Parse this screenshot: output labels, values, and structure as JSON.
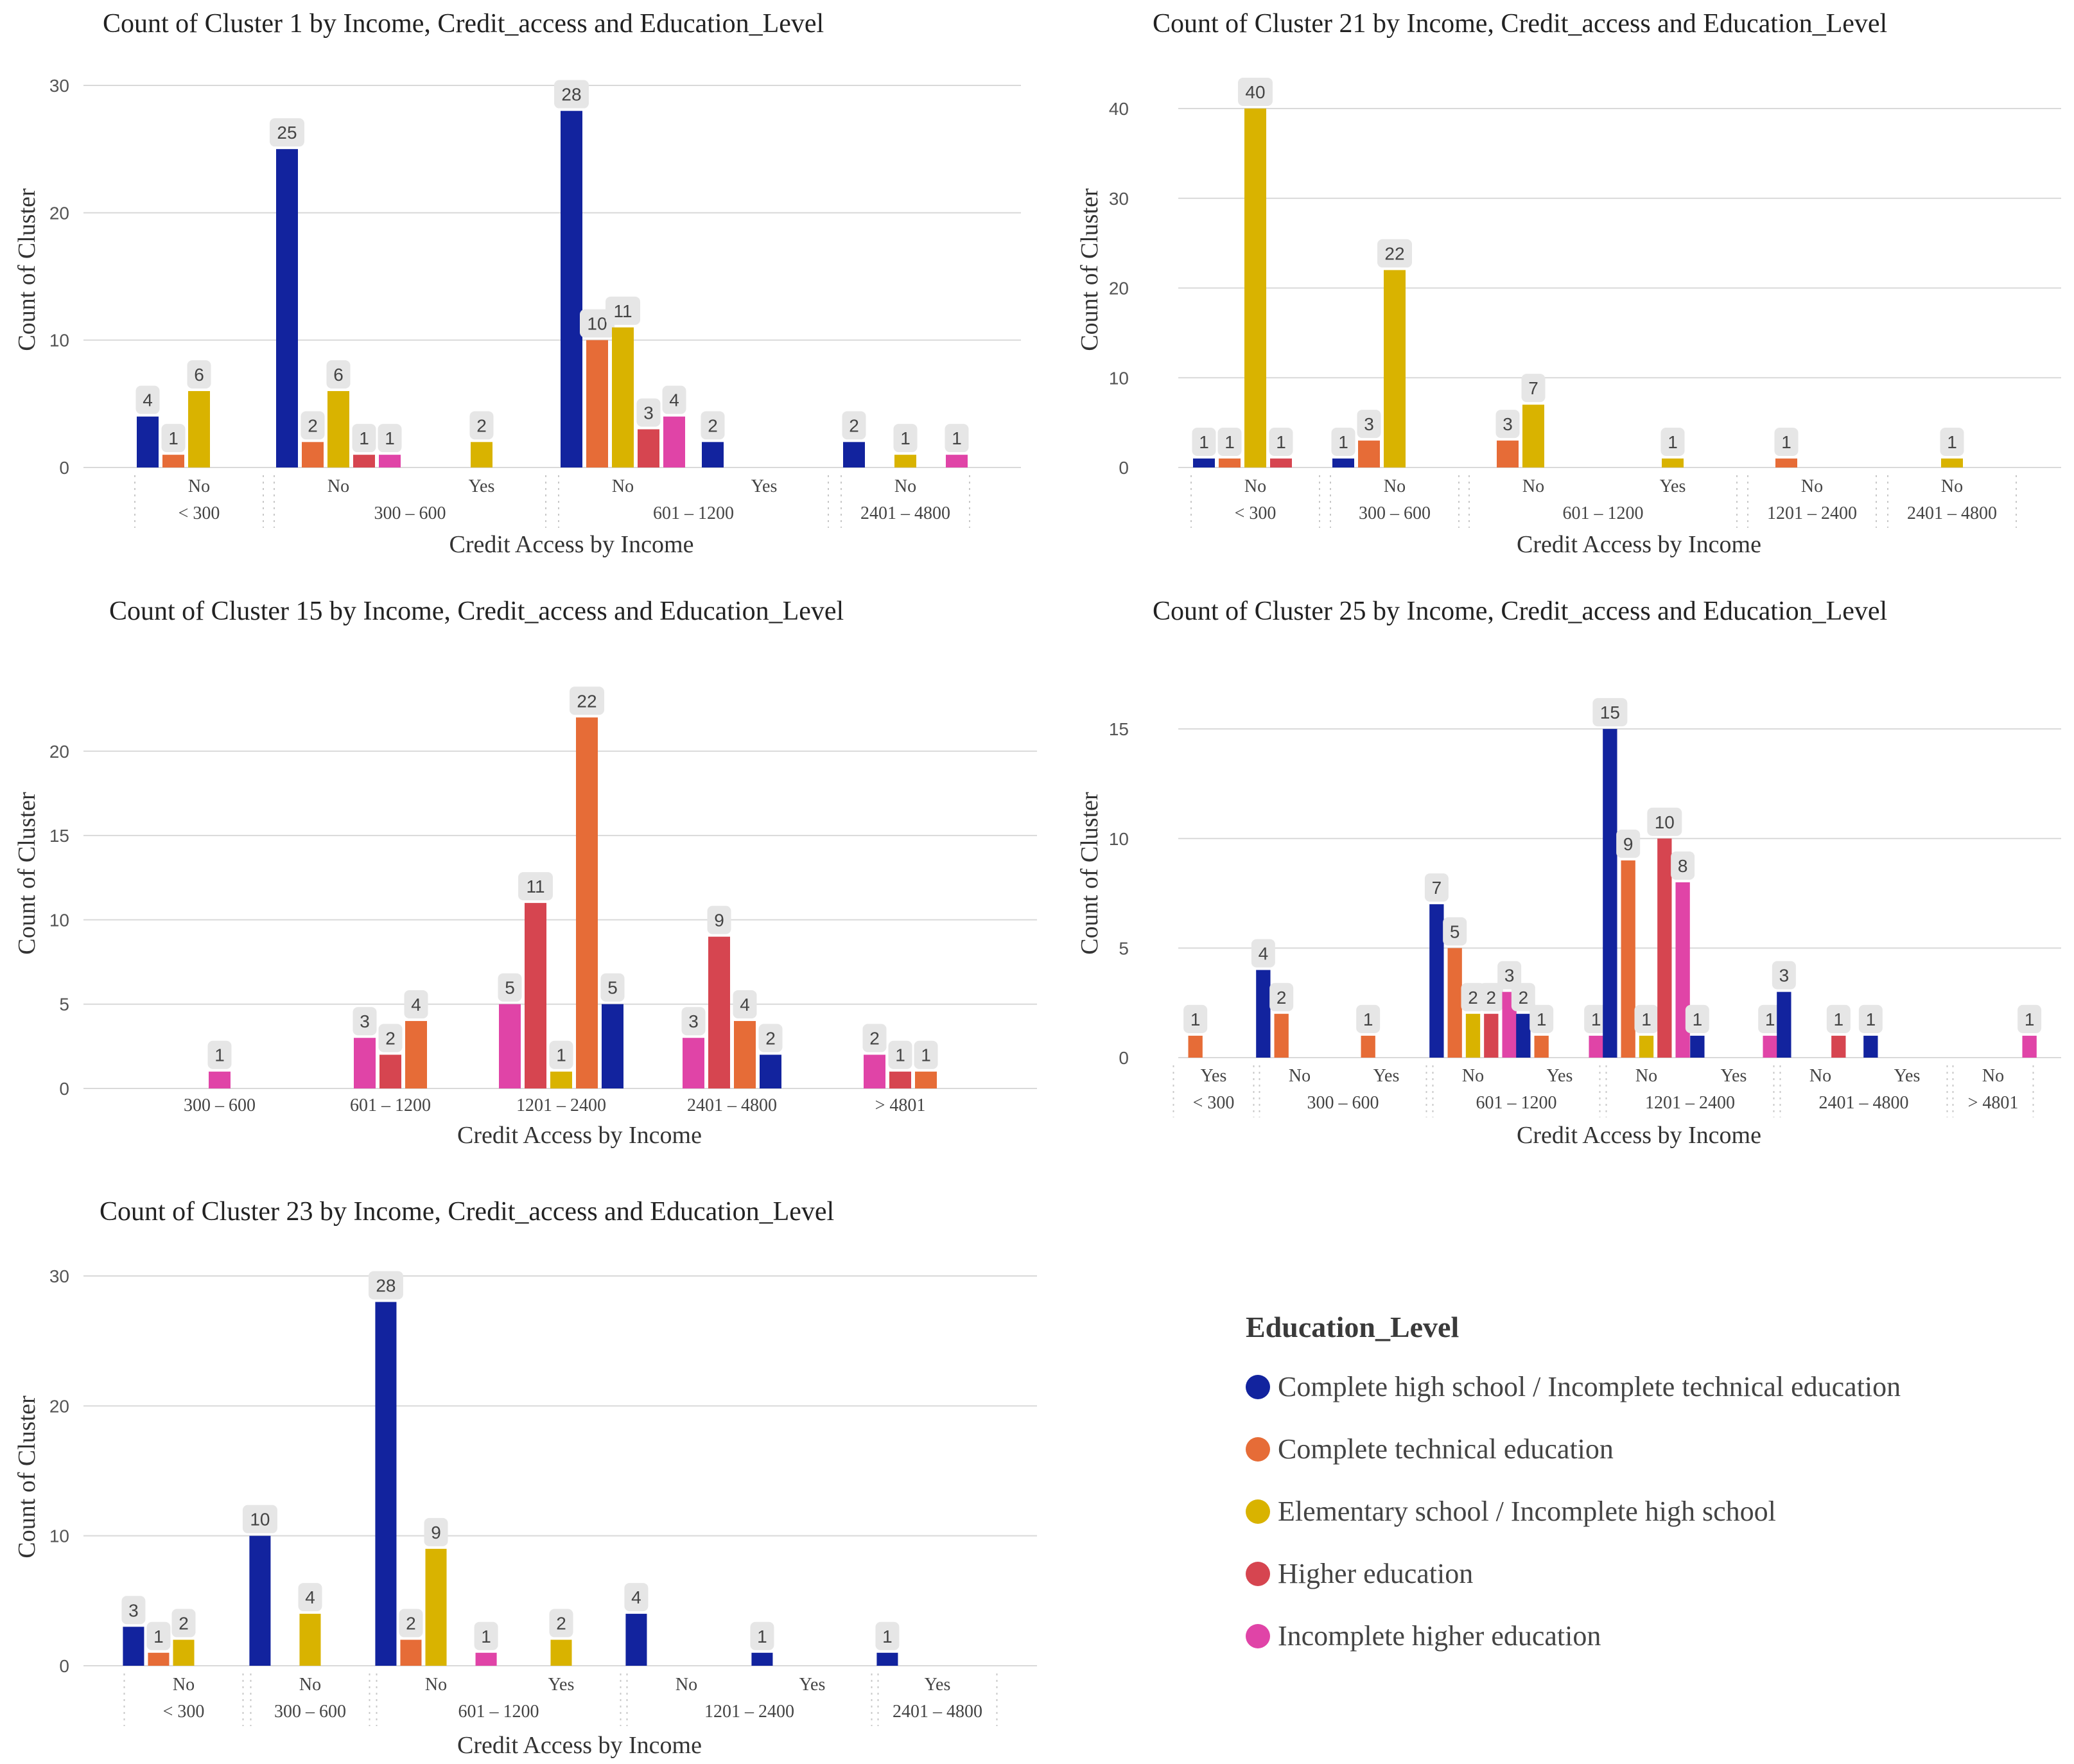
{
  "chart_data": [
    {
      "type": "bar",
      "title": "Count of Cluster 1 by Income, Credit_access and Education_Level",
      "xlabel": "Credit Access by Income",
      "ylabel": "Count of Cluster",
      "ylim": [
        0,
        30
      ],
      "yticks": [
        0,
        10,
        20,
        30
      ],
      "groups": [
        {
          "income": "< 300",
          "slots": [
            "No"
          ]
        },
        {
          "income": "300 – 600",
          "slots": [
            "No",
            "Yes"
          ]
        },
        {
          "income": "601 – 1200",
          "slots": [
            "No",
            "Yes"
          ]
        },
        {
          "income": "2401 – 4800",
          "slots": [
            "No"
          ]
        }
      ],
      "bars": [
        {
          "slot": 0,
          "series": 0,
          "value": 4
        },
        {
          "slot": 0,
          "series": 1,
          "value": 1
        },
        {
          "slot": 0,
          "series": 2,
          "value": 6
        },
        {
          "slot": 1,
          "series": 0,
          "value": 25
        },
        {
          "slot": 1,
          "series": 1,
          "value": 2
        },
        {
          "slot": 1,
          "series": 2,
          "value": 6
        },
        {
          "slot": 1,
          "series": 3,
          "value": 1
        },
        {
          "slot": 1,
          "series": 4,
          "value": 1
        },
        {
          "slot": 2,
          "series": 2,
          "value": 2
        },
        {
          "slot": 3,
          "series": 0,
          "value": 28
        },
        {
          "slot": 3,
          "series": 1,
          "value": 10
        },
        {
          "slot": 3,
          "series": 2,
          "value": 11
        },
        {
          "slot": 3,
          "series": 3,
          "value": 3
        },
        {
          "slot": 3,
          "series": 4,
          "value": 4
        },
        {
          "slot": 4,
          "series": 0,
          "value": 2
        },
        {
          "slot": 5,
          "series": 0,
          "value": 2
        },
        {
          "slot": 5,
          "series": 2,
          "value": 1
        },
        {
          "slot": 5,
          "series": 4,
          "value": 1
        }
      ]
    },
    {
      "type": "bar",
      "title": "Count of Cluster 21 by Income, Credit_access and Education_Level",
      "xlabel": "Credit Access by Income",
      "ylabel": "Count of Cluster",
      "ylim": [
        0,
        40
      ],
      "yticks": [
        0,
        10,
        20,
        30,
        40
      ],
      "groups": [
        {
          "income": "< 300",
          "slots": [
            "No"
          ]
        },
        {
          "income": "300 – 600",
          "slots": [
            "No"
          ]
        },
        {
          "income": "601 – 1200",
          "slots": [
            "No",
            "Yes"
          ]
        },
        {
          "income": "1201 – 2400",
          "slots": [
            "No"
          ]
        },
        {
          "income": "2401 – 4800",
          "slots": [
            "No"
          ]
        }
      ],
      "bars": [
        {
          "slot": 0,
          "series": 0,
          "value": 1
        },
        {
          "slot": 0,
          "series": 1,
          "value": 1
        },
        {
          "slot": 0,
          "series": 2,
          "value": 40
        },
        {
          "slot": 0,
          "series": 3,
          "value": 1
        },
        {
          "slot": 1,
          "series": 0,
          "value": 1
        },
        {
          "slot": 1,
          "series": 1,
          "value": 3
        },
        {
          "slot": 1,
          "series": 2,
          "value": 22
        },
        {
          "slot": 2,
          "series": 1,
          "value": 3
        },
        {
          "slot": 2,
          "series": 2,
          "value": 7
        },
        {
          "slot": 3,
          "series": 2,
          "value": 1
        },
        {
          "slot": 4,
          "series": 1,
          "value": 1
        },
        {
          "slot": 5,
          "series": 2,
          "value": 1
        }
      ]
    },
    {
      "type": "bar",
      "title": "Count of Cluster 15 by Income, Credit_access and Education_Level",
      "xlabel": "Credit Access by Income",
      "ylabel": "Count of Cluster",
      "ylim": [
        0,
        23
      ],
      "yticks": [
        0,
        5,
        10,
        15,
        20
      ],
      "groups": [
        {
          "income": "300 – 600",
          "slots": [
            ""
          ]
        },
        {
          "income": "601 – 1200",
          "slots": [
            ""
          ]
        },
        {
          "income": "1201 – 2400",
          "slots": [
            ""
          ]
        },
        {
          "income": "2401 – 4800",
          "slots": [
            ""
          ]
        },
        {
          "income": "> 4801",
          "slots": [
            ""
          ]
        }
      ],
      "bars": [
        {
          "slot": 0,
          "series": 4,
          "value": 1
        },
        {
          "slot": 1,
          "series": 4,
          "value": 3
        },
        {
          "slot": 1,
          "series": 3,
          "value": 2
        },
        {
          "slot": 1,
          "series": 1,
          "value": 4
        },
        {
          "slot": 2,
          "series": 4,
          "value": 5
        },
        {
          "slot": 2,
          "series": 3,
          "value": 11
        },
        {
          "slot": 2,
          "series": 2,
          "value": 1
        },
        {
          "slot": 2,
          "series": 1,
          "value": 22
        },
        {
          "slot": 2,
          "series": 0,
          "value": 5
        },
        {
          "slot": 3,
          "series": 4,
          "value": 3
        },
        {
          "slot": 3,
          "series": 3,
          "value": 9
        },
        {
          "slot": 3,
          "series": 1,
          "value": 4
        },
        {
          "slot": 3,
          "series": 0,
          "value": 2
        },
        {
          "slot": 4,
          "series": 4,
          "value": 2
        },
        {
          "slot": 4,
          "series": 3,
          "value": 1
        },
        {
          "slot": 4,
          "series": 1,
          "value": 1
        }
      ]
    },
    {
      "type": "bar",
      "title": "Count of Cluster 25 by Income, Credit_access and Education_Level",
      "xlabel": "Credit Access by Income",
      "ylabel": "Count of Cluster",
      "ylim": [
        0,
        16
      ],
      "yticks": [
        0,
        5,
        10,
        15
      ],
      "groups": [
        {
          "income": "< 300",
          "slots": [
            "Yes"
          ]
        },
        {
          "income": "300 – 600",
          "slots": [
            "No",
            "Yes"
          ]
        },
        {
          "income": "601 – 1200",
          "slots": [
            "No",
            "Yes"
          ]
        },
        {
          "income": "1201 – 2400",
          "slots": [
            "No",
            "Yes"
          ]
        },
        {
          "income": "2401 – 4800",
          "slots": [
            "No",
            "Yes"
          ]
        },
        {
          "income": "> 4801",
          "slots": [
            "No"
          ]
        }
      ],
      "bars": [
        {
          "slot": 0,
          "series": 1,
          "value": 1
        },
        {
          "slot": 1,
          "series": 0,
          "value": 4
        },
        {
          "slot": 1,
          "series": 1,
          "value": 2
        },
        {
          "slot": 2,
          "series": 1,
          "value": 1
        },
        {
          "slot": 3,
          "series": 0,
          "value": 7
        },
        {
          "slot": 3,
          "series": 1,
          "value": 5
        },
        {
          "slot": 3,
          "series": 2,
          "value": 2
        },
        {
          "slot": 3,
          "series": 3,
          "value": 2
        },
        {
          "slot": 3,
          "series": 4,
          "value": 3
        },
        {
          "slot": 4,
          "series": 0,
          "value": 2
        },
        {
          "slot": 4,
          "series": 1,
          "value": 1
        },
        {
          "slot": 4,
          "series": 4,
          "value": 1
        },
        {
          "slot": 5,
          "series": 0,
          "value": 15
        },
        {
          "slot": 5,
          "series": 1,
          "value": 9
        },
        {
          "slot": 5,
          "series": 2,
          "value": 1
        },
        {
          "slot": 5,
          "series": 3,
          "value": 10
        },
        {
          "slot": 5,
          "series": 4,
          "value": 8
        },
        {
          "slot": 6,
          "series": 0,
          "value": 1
        },
        {
          "slot": 6,
          "series": 4,
          "value": 1
        },
        {
          "slot": 7,
          "series": 0,
          "value": 3
        },
        {
          "slot": 7,
          "series": 3,
          "value": 1
        },
        {
          "slot": 8,
          "series": 0,
          "value": 1
        },
        {
          "slot": 9,
          "series": 4,
          "value": 1
        }
      ]
    },
    {
      "type": "bar",
      "title": "Count of Cluster 23 by Income, Credit_access and Education_Level",
      "xlabel": "Credit Access by Income",
      "ylabel": "Count of Cluster",
      "ylim": [
        0,
        30
      ],
      "yticks": [
        0,
        10,
        20,
        30
      ],
      "groups": [
        {
          "income": "< 300",
          "slots": [
            "No"
          ]
        },
        {
          "income": "300 – 600",
          "slots": [
            "No"
          ]
        },
        {
          "income": "601 – 1200",
          "slots": [
            "No",
            "Yes"
          ]
        },
        {
          "income": "1201 – 2400",
          "slots": [
            "No",
            "Yes"
          ]
        },
        {
          "income": "2401 – 4800",
          "slots": [
            "Yes"
          ]
        }
      ],
      "bars": [
        {
          "slot": 0,
          "series": 0,
          "value": 3
        },
        {
          "slot": 0,
          "series": 1,
          "value": 1
        },
        {
          "slot": 0,
          "series": 2,
          "value": 2
        },
        {
          "slot": 1,
          "series": 0,
          "value": 10
        },
        {
          "slot": 1,
          "series": 2,
          "value": 4
        },
        {
          "slot": 2,
          "series": 0,
          "value": 28
        },
        {
          "slot": 2,
          "series": 1,
          "value": 2
        },
        {
          "slot": 2,
          "series": 2,
          "value": 9
        },
        {
          "slot": 2,
          "series": 4,
          "value": 1
        },
        {
          "slot": 3,
          "series": 2,
          "value": 2
        },
        {
          "slot": 4,
          "series": 0,
          "value": 4
        },
        {
          "slot": 5,
          "series": 0,
          "value": 1
        },
        {
          "slot": 6,
          "series": 0,
          "value": 1
        }
      ]
    }
  ],
  "legend": {
    "title": "Education_Level",
    "items": [
      {
        "label": "Complete high school / Incomplete technical education",
        "color": "#12239e"
      },
      {
        "label": "Complete technical education",
        "color": "#e66c37"
      },
      {
        "label": "Elementary school / Incomplete high school",
        "color": "#d9b300"
      },
      {
        "label": "Higher education",
        "color": "#d64550"
      },
      {
        "label": "Incomplete higher education",
        "color": "#e044a7"
      }
    ]
  }
}
